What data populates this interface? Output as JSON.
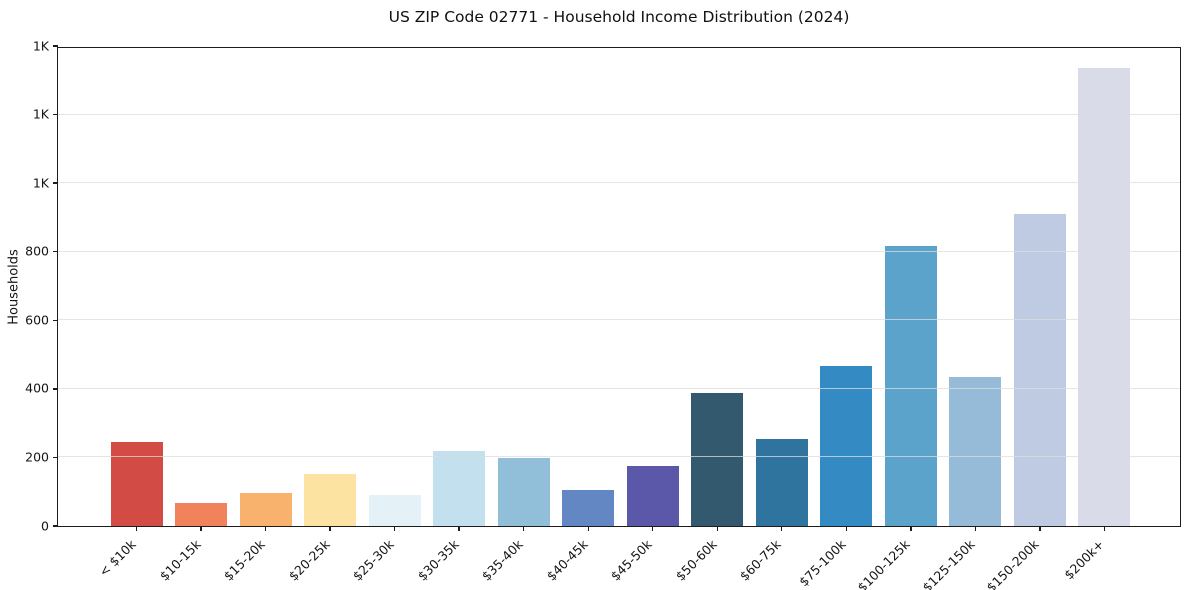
{
  "title": "US ZIP Code 02771 - Household Income Distribution (2024)",
  "chart_data": {
    "type": "bar",
    "title": "US ZIP Code 02771 - Household Income Distribution (2024)",
    "xlabel": "",
    "ylabel": "Households",
    "categories": [
      "< $10k",
      "$10-15k",
      "$15-20k",
      "$20-25k",
      "$25-30k",
      "$30-35k",
      "$35-40k",
      "$40-45k",
      "$45-50k",
      "$50-60k",
      "$60-75k",
      "$75-100k",
      "$100-125k",
      "$125-150k",
      "$150-200k",
      "$200k+"
    ],
    "values": [
      245,
      68,
      97,
      152,
      90,
      220,
      197,
      104,
      176,
      387,
      253,
      466,
      817,
      434,
      911,
      1337
    ],
    "bar_colors": [
      "#d24b45",
      "#f0825c",
      "#f9b26d",
      "#fde3a1",
      "#e4f1f7",
      "#c3e0ee",
      "#91bed9",
      "#6287c2",
      "#5b57a9",
      "#32596d",
      "#2f749f",
      "#348bc3",
      "#5ba3ca",
      "#95bbd8",
      "#bfcbe2",
      "#d9dbe9"
    ],
    "ylim": [
      0,
      1400
    ],
    "ytick_values": [
      0,
      200,
      400,
      600,
      800,
      1000,
      1200,
      1400
    ],
    "ytick_labels": [
      "0",
      "200",
      "400",
      "600",
      "800",
      "1K",
      "1K",
      "1K"
    ],
    "grid": "horizontal-only",
    "grid_color": "#e7e7e7",
    "legend": "none",
    "xtick_rotation_deg": 45
  },
  "colors": {
    "background": "#ffffff",
    "spine": "#1c1c1c",
    "text": "#151515"
  }
}
